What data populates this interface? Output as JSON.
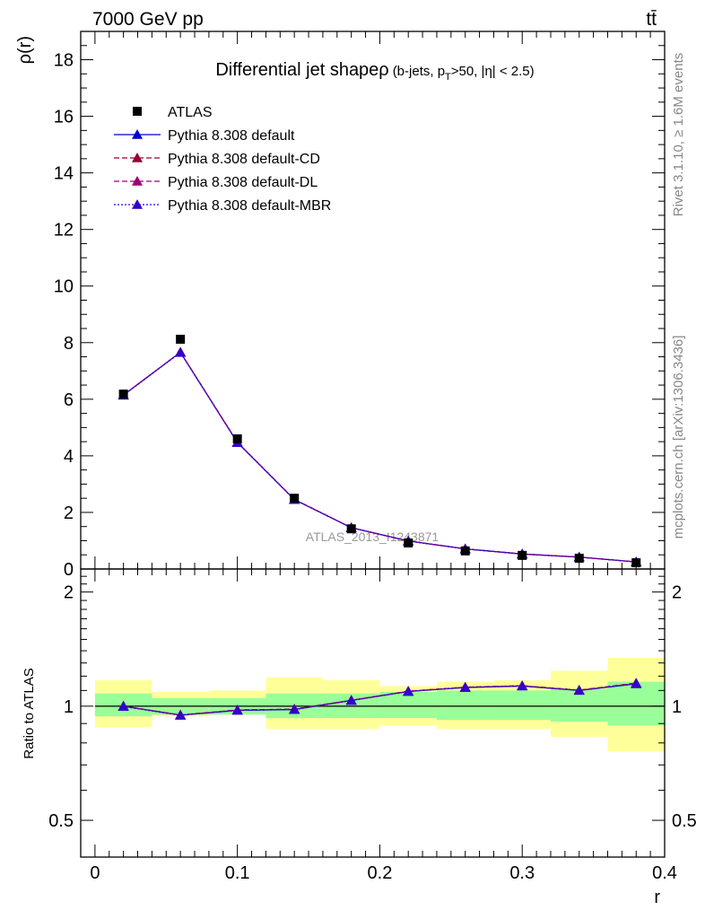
{
  "header": {
    "energy_label": "7000 GeV pp",
    "process_label": "tt̄",
    "rivet_label": "Rivet 3.1.10, ≥ 1.6M events",
    "mcplots_label": "mcplots.cern.ch [arXiv:1306.3436]",
    "watermark": "ATLAS_2013_I1243871"
  },
  "colors": {
    "data": "#000000",
    "default": "#0000cc",
    "cd": "#990033",
    "dl": "#a00070",
    "mbr": "#3300cc",
    "band_inner": "#99ff99",
    "band_outer": "#ffff99"
  },
  "chart_data": [
    {
      "type": "scatter",
      "title_main": "Differential jet shapeρ",
      "title_sub": "(b-jets, p",
      "title_sub_sub": "T",
      "title_sub_tail": ">50, |η| < 2.5)",
      "ylabel": "ρ(r)",
      "xlim": [
        -0.01,
        0.4
      ],
      "ylim": [
        0,
        19
      ],
      "yticks": [
        0,
        2,
        4,
        6,
        8,
        10,
        12,
        14,
        16,
        18
      ],
      "legend_placement": "top-left",
      "x": [
        0.02,
        0.06,
        0.1,
        0.14,
        0.18,
        0.22,
        0.26,
        0.3,
        0.34,
        0.38
      ],
      "series": [
        {
          "name": "ATLAS",
          "style": "data",
          "values": [
            6.18,
            8.12,
            4.6,
            2.5,
            1.42,
            0.92,
            0.64,
            0.48,
            0.38,
            0.22
          ]
        },
        {
          "name": "Pythia 8.308 default",
          "style": "default",
          "values": [
            6.15,
            7.66,
            4.47,
            2.45,
            1.46,
            0.99,
            0.71,
            0.53,
            0.42,
            0.25
          ]
        },
        {
          "name": "Pythia 8.308 default-CD",
          "style": "cd",
          "values": [
            6.15,
            7.66,
            4.48,
            2.46,
            1.46,
            0.99,
            0.71,
            0.53,
            0.42,
            0.25
          ]
        },
        {
          "name": "Pythia 8.308 default-DL",
          "style": "dl",
          "values": [
            6.15,
            7.66,
            4.48,
            2.46,
            1.46,
            0.99,
            0.71,
            0.53,
            0.42,
            0.25
          ]
        },
        {
          "name": "Pythia 8.308 default-MBR",
          "style": "mbr",
          "values": [
            6.14,
            7.65,
            4.47,
            2.45,
            1.46,
            0.99,
            0.71,
            0.53,
            0.42,
            0.25
          ]
        }
      ]
    },
    {
      "type": "line",
      "ylabel": "Ratio to ATLAS",
      "xlabel": "r",
      "xlim": [
        -0.01,
        0.4
      ],
      "ylim": [
        0.4,
        2.3
      ],
      "ylog": true,
      "yticks": [
        0.5,
        1,
        2
      ],
      "ytick_labels": [
        "0.5",
        "1",
        "2"
      ],
      "xticks": [
        0,
        0.1,
        0.2,
        0.3,
        0.4
      ],
      "xtick_labels": [
        "0",
        "0.1",
        "0.2",
        "0.3",
        "0.4"
      ],
      "bins": [
        [
          0.0,
          0.04
        ],
        [
          0.04,
          0.08
        ],
        [
          0.08,
          0.12
        ],
        [
          0.12,
          0.16
        ],
        [
          0.16,
          0.2
        ],
        [
          0.2,
          0.24
        ],
        [
          0.24,
          0.28
        ],
        [
          0.28,
          0.32
        ],
        [
          0.32,
          0.36
        ],
        [
          0.36,
          0.4
        ]
      ],
      "band_inner": [
        [
          0.94,
          1.08
        ],
        [
          0.95,
          1.05
        ],
        [
          0.95,
          1.05
        ],
        [
          0.93,
          1.08
        ],
        [
          0.93,
          1.08
        ],
        [
          0.93,
          1.09
        ],
        [
          0.92,
          1.1
        ],
        [
          0.92,
          1.1
        ],
        [
          0.91,
          1.11
        ],
        [
          0.89,
          1.16
        ]
      ],
      "band_outer": [
        [
          0.88,
          1.17
        ],
        [
          0.94,
          1.09
        ],
        [
          0.95,
          1.1
        ],
        [
          0.87,
          1.19
        ],
        [
          0.87,
          1.17
        ],
        [
          0.89,
          1.13
        ],
        [
          0.87,
          1.16
        ],
        [
          0.87,
          1.17
        ],
        [
          0.83,
          1.24
        ],
        [
          0.76,
          1.34
        ]
      ],
      "x": [
        0.02,
        0.06,
        0.1,
        0.14,
        0.18,
        0.22,
        0.26,
        0.3,
        0.34,
        0.38
      ],
      "series": [
        {
          "name": "Pythia 8.308 default",
          "style": "default",
          "values": [
            1.0,
            0.947,
            0.975,
            0.98,
            1.036,
            1.093,
            1.12,
            1.13,
            1.1,
            1.145
          ]
        },
        {
          "name": "Pythia 8.308 default-CD",
          "style": "cd",
          "values": [
            1.0,
            0.948,
            0.977,
            0.982,
            1.036,
            1.095,
            1.122,
            1.132,
            1.102,
            1.15
          ]
        },
        {
          "name": "Pythia 8.308 default-DL",
          "style": "dl",
          "values": [
            1.0,
            0.948,
            0.977,
            0.982,
            1.036,
            1.095,
            1.122,
            1.132,
            1.102,
            1.15
          ]
        },
        {
          "name": "Pythia 8.308 default-MBR",
          "style": "mbr",
          "values": [
            0.998,
            0.946,
            0.975,
            0.98,
            1.035,
            1.094,
            1.121,
            1.131,
            1.101,
            1.148
          ]
        }
      ]
    }
  ]
}
